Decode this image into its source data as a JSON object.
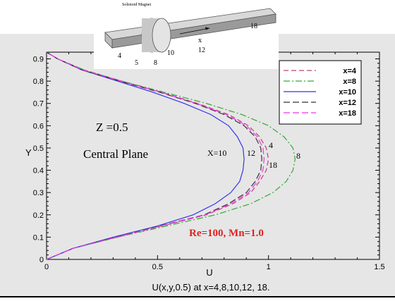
{
  "inset": {
    "title": "Solenoid Magnet",
    "labels": {
      "x4": "4",
      "x5": "5",
      "x8": "8",
      "x10": "10",
      "x12": "12",
      "x18": "18",
      "axis": "x"
    }
  },
  "chart_data": {
    "type": "line",
    "xlabel": "U",
    "ylabel": "Y",
    "caption": "U(x,y,0.5) at x=4,8,10,12, 18.",
    "xlim": [
      0,
      1.5
    ],
    "ylim": [
      0,
      0.93
    ],
    "xticks": [
      0,
      0.5,
      1,
      1.5
    ],
    "yticks": [
      0,
      0.1,
      0.2,
      0.3,
      0.4,
      0.5,
      0.6,
      0.7,
      0.8,
      0.9
    ],
    "legend_position": "top-right",
    "annotations": {
      "z": "Z =0.5",
      "plane": "Central Plane",
      "re": "Re=100, Mn=1.0",
      "x10": "X=10",
      "x12": "12",
      "x4": "4",
      "x18": "18",
      "x8": "8"
    },
    "series": [
      {
        "name": "x=4",
        "color": "#c0407a",
        "dash": "7,4",
        "y": [
          0,
          0.05,
          0.1,
          0.15,
          0.2,
          0.25,
          0.3,
          0.35,
          0.4,
          0.45,
          0.5,
          0.55,
          0.6,
          0.65,
          0.7,
          0.75,
          0.8,
          0.85,
          0.9,
          0.93
        ],
        "x": [
          0,
          0.12,
          0.32,
          0.52,
          0.72,
          0.84,
          0.92,
          0.96,
          0.99,
          1.0,
          0.99,
          0.96,
          0.91,
          0.82,
          0.68,
          0.52,
          0.34,
          0.17,
          0.05,
          0
        ]
      },
      {
        "name": "x=8",
        "color": "#33aa33",
        "dash": "9,3,2,3",
        "y": [
          0,
          0.05,
          0.1,
          0.15,
          0.2,
          0.25,
          0.3,
          0.35,
          0.4,
          0.45,
          0.5,
          0.55,
          0.6,
          0.65,
          0.7,
          0.75,
          0.8,
          0.85,
          0.9,
          0.93
        ],
        "x": [
          0,
          0.12,
          0.32,
          0.54,
          0.76,
          0.92,
          1.02,
          1.08,
          1.11,
          1.12,
          1.11,
          1.07,
          1.0,
          0.88,
          0.72,
          0.53,
          0.34,
          0.17,
          0.05,
          0
        ]
      },
      {
        "name": "x=10",
        "color": "#3333ee",
        "dash": "",
        "y": [
          0,
          0.05,
          0.1,
          0.15,
          0.2,
          0.25,
          0.3,
          0.35,
          0.4,
          0.45,
          0.5,
          0.55,
          0.6,
          0.65,
          0.7,
          0.75,
          0.8,
          0.85,
          0.9,
          0.93
        ],
        "x": [
          0,
          0.12,
          0.3,
          0.5,
          0.66,
          0.76,
          0.83,
          0.87,
          0.885,
          0.89,
          0.885,
          0.86,
          0.82,
          0.74,
          0.62,
          0.48,
          0.32,
          0.16,
          0.05,
          0
        ]
      },
      {
        "name": "x=12",
        "color": "#333333",
        "dash": "9,4",
        "y": [
          0,
          0.05,
          0.1,
          0.15,
          0.2,
          0.25,
          0.3,
          0.35,
          0.4,
          0.45,
          0.5,
          0.55,
          0.6,
          0.65,
          0.7,
          0.75,
          0.8,
          0.85,
          0.9,
          0.93
        ],
        "x": [
          0,
          0.12,
          0.31,
          0.51,
          0.71,
          0.82,
          0.9,
          0.94,
          0.965,
          0.97,
          0.965,
          0.94,
          0.89,
          0.8,
          0.67,
          0.51,
          0.33,
          0.16,
          0.05,
          0
        ]
      },
      {
        "name": "x=18",
        "color": "#ee33ee",
        "dash": "9,4",
        "y": [
          0,
          0.05,
          0.1,
          0.15,
          0.2,
          0.25,
          0.3,
          0.35,
          0.4,
          0.45,
          0.5,
          0.55,
          0.6,
          0.65,
          0.7,
          0.75,
          0.8,
          0.85,
          0.9,
          0.93
        ],
        "x": [
          0,
          0.12,
          0.315,
          0.515,
          0.715,
          0.83,
          0.91,
          0.95,
          0.975,
          0.98,
          0.975,
          0.95,
          0.9,
          0.81,
          0.675,
          0.515,
          0.335,
          0.165,
          0.05,
          0
        ]
      }
    ]
  }
}
